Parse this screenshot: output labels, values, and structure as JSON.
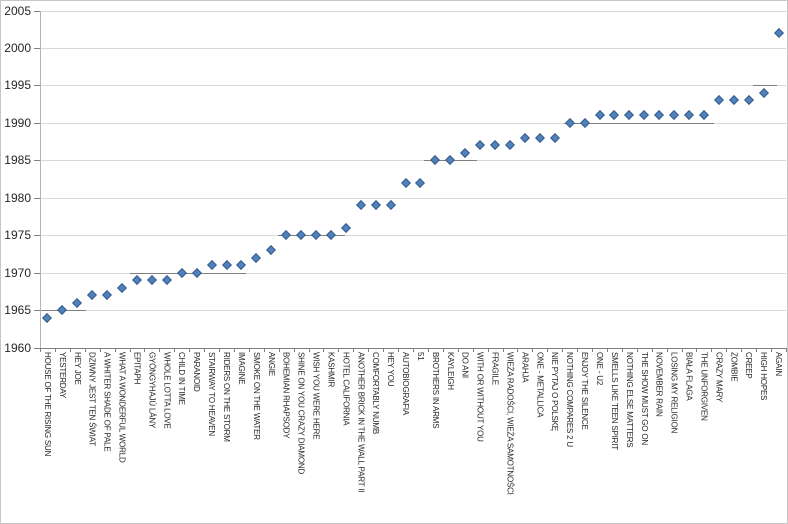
{
  "chart_data": {
    "type": "scatter",
    "title": "",
    "xlabel": "",
    "ylabel": "",
    "legend": "none",
    "grid": "horizontal-major",
    "marker_shape": "diamond",
    "ylim": [
      1960,
      2005
    ],
    "ytick_interval": 5,
    "yticks": [
      1960,
      1965,
      1970,
      1975,
      1980,
      1985,
      1990,
      1995,
      2000,
      2005
    ],
    "categories": [
      "HOUSE OF THE RISING SUN",
      "YESTERDAY",
      "HEY JOE",
      "DZIWNY JEST TEN ŚWIAT",
      "A WHITER SHADE OF PALE",
      "WHAT A WONDERFUL WORLD",
      "EPITAPH",
      "GYÖNGYHAJÚ LÁNY",
      "WHOLE LOTTA LOVE",
      "CHILD IN TIME",
      "PARANOID",
      "STAIRWAY TO HEAVEN",
      "RIDERS ON THE STORM",
      "IMAGINE",
      "SMOKE ON THE WATER",
      "ANGIE",
      "BOHEMIAN RHAPSODY",
      "SHINE ON YOU CRAZY DIAMOND",
      "WISH YOU WERE HERE",
      "KASHMIR",
      "HOTEL CALIFORNIA",
      "ANOTHER BRICK IN THE WALL PART II",
      "COMFORTABLY NUMB",
      "HEY YOU",
      "AUTOBIOGRAFIA",
      "51",
      "BROTHERS IN ARMS",
      "KAYLEIGH",
      "DO ANI",
      "WITH OR WITHOUT YOU",
      "FRAGILE",
      "WIEŻA RADOŚCI, WIEŻA SAMOTNOŚCI",
      "ARAHJA",
      "ONE - METALLICA",
      "NIE PYTAJ O POLSKĘ",
      "NOTHING COMPARES 2 U",
      "ENJOY THE SILENCE",
      "ONE - U2",
      "SMELLS LIKE TEEN SPIRIT",
      "NOTHING ELSE MATTERS",
      "THE SHOW MUST GO ON",
      "NOVEMBER RAIN",
      "LOSING MY RELIGION",
      "BIAŁA FLAGA",
      "THE UNFORGIVEN",
      "CRAZY MARY",
      "ZOMBIE",
      "CREEP",
      "HIGH HOPES",
      "AGAIN"
    ],
    "values": [
      1964,
      1965,
      1966,
      1967,
      1967,
      1968,
      1969,
      1969,
      1969,
      1970,
      1970,
      1971,
      1971,
      1971,
      1972,
      1973,
      1975,
      1975,
      1975,
      1975,
      1976,
      1979,
      1979,
      1979,
      1982,
      1982,
      1985,
      1985,
      1986,
      1987,
      1987,
      1987,
      1988,
      1988,
      1988,
      1990,
      1990,
      1991,
      1991,
      1991,
      1991,
      1991,
      1991,
      1991,
      1991,
      1993,
      1993,
      1993,
      1994,
      2002
    ],
    "dark_gridline_segments": [
      {
        "year": 1965,
        "x1": 41,
        "x2": 86
      },
      {
        "year": 1970,
        "x1": 130,
        "x2": 246
      },
      {
        "year": 1975,
        "x1": 278,
        "x2": 345
      },
      {
        "year": 1985,
        "x1": 424,
        "x2": 477
      },
      {
        "year": 1990,
        "x1": 564,
        "x2": 714
      },
      {
        "year": 1995,
        "x1": 753,
        "x2": 777
      }
    ],
    "colors": {
      "marker_fill": "#4F81BD",
      "marker_border": "#385D8A",
      "gridline": "#D9D9D9",
      "gridline_dark": "#7F7F7F",
      "axis_line": "#808080",
      "text": "#262626",
      "background": "#FFFFFF",
      "outer_border": "#C6C6C6"
    }
  }
}
